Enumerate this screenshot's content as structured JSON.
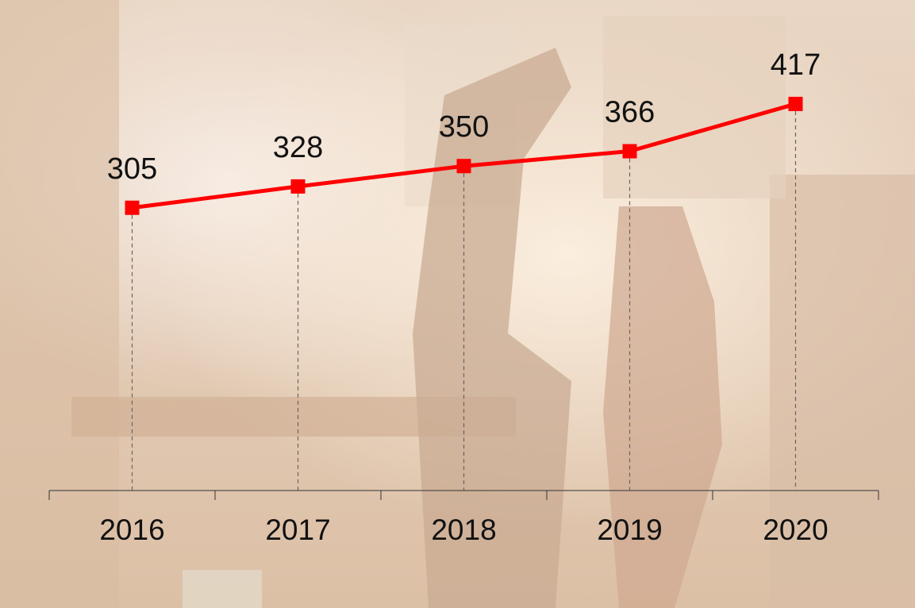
{
  "chart_data": {
    "type": "line",
    "categories": [
      "2016",
      "2017",
      "2018",
      "2019",
      "2020"
    ],
    "series": [
      {
        "values": [
          305,
          328,
          350,
          366,
          417
        ],
        "color": "#ff0000"
      }
    ],
    "ylim": [
      0,
      500
    ]
  }
}
